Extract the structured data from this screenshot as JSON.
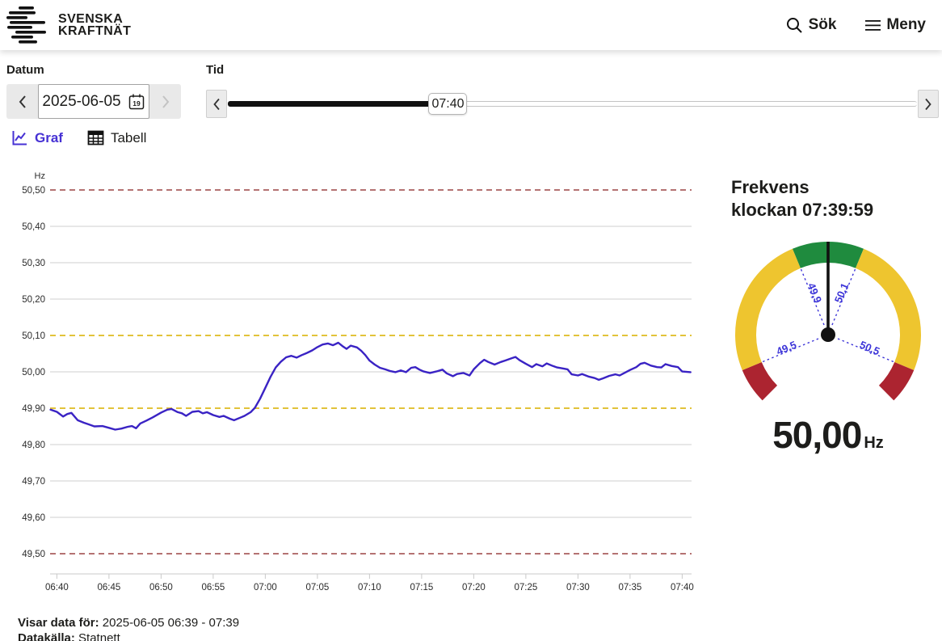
{
  "header": {
    "logo_line1": "SVENSKA",
    "logo_line2": "KRAFTNÄT",
    "search_label": "Sök",
    "menu_label": "Meny"
  },
  "controls": {
    "date_label": "Datum",
    "date_value": "2025-06-05",
    "calendar_icon_day": "19",
    "time_label": "Tid",
    "time_value": "07:40",
    "slider_range": [
      "00:00",
      "24:00"
    ]
  },
  "tabs": {
    "graf": "Graf",
    "tabell": "Tabell"
  },
  "colors": {
    "accent_purple": "#4631d4",
    "line_blue": "#3a23c4",
    "threshold_red": "#9b4343",
    "threshold_yellow": "#e2c33a",
    "gauge_green": "#1f8b3e",
    "gauge_yellow": "#eec52f",
    "gauge_red": "#ac2430",
    "gauge_tick_blue": "#3d35d8"
  },
  "icons": [
    "svenska-kraftnat-logo-mark",
    "search-icon",
    "menu-icon",
    "chevron-left-icon",
    "chevron-right-icon",
    "calendar-icon",
    "line-chart-icon",
    "table-icon"
  ],
  "chart_data": {
    "type": "line",
    "title": "",
    "xlabel": "",
    "ylabel": "Hz",
    "grid": true,
    "legend": false,
    "x_unit": "minutes since 06:00",
    "xlim_minutes": [
      39.35,
      100.9
    ],
    "ylim": [
      49.5,
      50.5
    ],
    "x_ticks": [
      {
        "m": 40,
        "label": "06:40"
      },
      {
        "m": 45,
        "label": "06:45"
      },
      {
        "m": 50,
        "label": "06:50"
      },
      {
        "m": 55,
        "label": "06:55"
      },
      {
        "m": 60,
        "label": "07:00"
      },
      {
        "m": 65,
        "label": "07:05"
      },
      {
        "m": 70,
        "label": "07:10"
      },
      {
        "m": 75,
        "label": "07:15"
      },
      {
        "m": 80,
        "label": "07:20"
      },
      {
        "m": 85,
        "label": "07:25"
      },
      {
        "m": 90,
        "label": "07:30"
      },
      {
        "m": 95,
        "label": "07:35"
      },
      {
        "m": 100,
        "label": "07:40"
      }
    ],
    "y_ticks": [
      {
        "v": 50.5,
        "label": "50,50",
        "kind": "red"
      },
      {
        "v": 50.4,
        "label": "50,40",
        "kind": "gray"
      },
      {
        "v": 50.3,
        "label": "50,30",
        "kind": "gray"
      },
      {
        "v": 50.2,
        "label": "50,20",
        "kind": "gray"
      },
      {
        "v": 50.1,
        "label": "50,10",
        "kind": "yellow"
      },
      {
        "v": 50.0,
        "label": "50,00",
        "kind": "gray"
      },
      {
        "v": 49.9,
        "label": "49,90",
        "kind": "yellow"
      },
      {
        "v": 49.8,
        "label": "49,80",
        "kind": "gray"
      },
      {
        "v": 49.7,
        "label": "49,70",
        "kind": "gray"
      },
      {
        "v": 49.6,
        "label": "49,60",
        "kind": "gray"
      },
      {
        "v": 49.5,
        "label": "49,50",
        "kind": "red"
      }
    ],
    "thresholds": [
      {
        "value": 50.5,
        "color": "#9b4343",
        "style": "dashed",
        "meaning": "upper limit"
      },
      {
        "value": 50.1,
        "color": "#e2c33a",
        "style": "dashed",
        "meaning": "upper normal band"
      },
      {
        "value": 49.9,
        "color": "#e2c33a",
        "style": "dashed",
        "meaning": "lower normal band"
      },
      {
        "value": 49.5,
        "color": "#9b4343",
        "style": "dashed",
        "meaning": "lower limit"
      }
    ],
    "series": [
      {
        "name": "Frekvens",
        "color": "#3a23c4",
        "points": [
          [
            39.4,
            49.896
          ],
          [
            40,
            49.89
          ],
          [
            40.6,
            49.877
          ],
          [
            41,
            49.884
          ],
          [
            41.4,
            49.887
          ],
          [
            42,
            49.867
          ],
          [
            42.6,
            49.86
          ],
          [
            43,
            49.856
          ],
          [
            43.6,
            49.85
          ],
          [
            44.4,
            49.851
          ],
          [
            45,
            49.846
          ],
          [
            45.6,
            49.841
          ],
          [
            46.2,
            49.844
          ],
          [
            46.8,
            49.849
          ],
          [
            47.2,
            49.851
          ],
          [
            47.6,
            49.845
          ],
          [
            48,
            49.858
          ],
          [
            48.6,
            49.866
          ],
          [
            49.2,
            49.875
          ],
          [
            50,
            49.888
          ],
          [
            50.6,
            49.896
          ],
          [
            51,
            49.898
          ],
          [
            51.6,
            49.889
          ],
          [
            52,
            49.886
          ],
          [
            52.4,
            49.879
          ],
          [
            53,
            49.89
          ],
          [
            53.6,
            49.892
          ],
          [
            54,
            49.886
          ],
          [
            54.4,
            49.889
          ],
          [
            55,
            49.881
          ],
          [
            55.6,
            49.876
          ],
          [
            56,
            49.879
          ],
          [
            56.6,
            49.871
          ],
          [
            57,
            49.867
          ],
          [
            57.6,
            49.874
          ],
          [
            58,
            49.879
          ],
          [
            58.6,
            49.889
          ],
          [
            59,
            49.901
          ],
          [
            59.5,
            49.926
          ],
          [
            60,
            49.956
          ],
          [
            60.5,
            49.986
          ],
          [
            61,
            50.012
          ],
          [
            61.5,
            50.028
          ],
          [
            62,
            50.04
          ],
          [
            62.5,
            50.044
          ],
          [
            63,
            50.039
          ],
          [
            63.5,
            50.046
          ],
          [
            64,
            50.052
          ],
          [
            64.5,
            50.059
          ],
          [
            65,
            50.068
          ],
          [
            65.5,
            50.075
          ],
          [
            66,
            50.078
          ],
          [
            66.5,
            50.073
          ],
          [
            67,
            50.08
          ],
          [
            67.4,
            50.071
          ],
          [
            67.8,
            50.063
          ],
          [
            68.2,
            50.072
          ],
          [
            68.8,
            50.067
          ],
          [
            69.2,
            50.058
          ],
          [
            69.6,
            50.046
          ],
          [
            70,
            50.031
          ],
          [
            70.5,
            50.02
          ],
          [
            71,
            50.011
          ],
          [
            71.5,
            50.007
          ],
          [
            72,
            50.002
          ],
          [
            72.5,
            49.999
          ],
          [
            73,
            50.004
          ],
          [
            73.5,
            49.999
          ],
          [
            74,
            50.011
          ],
          [
            74.4,
            50.013
          ],
          [
            74.8,
            50.006
          ],
          [
            75.2,
            50.001
          ],
          [
            75.8,
            49.997
          ],
          [
            76.4,
            50.001
          ],
          [
            77,
            50.006
          ],
          [
            77.4,
            49.996
          ],
          [
            78,
            49.988
          ],
          [
            78.4,
            49.994
          ],
          [
            79,
            49.997
          ],
          [
            79.6,
            49.99
          ],
          [
            80,
            50.007
          ],
          [
            80.6,
            50.024
          ],
          [
            81,
            50.033
          ],
          [
            81.4,
            50.027
          ],
          [
            82,
            50.02
          ],
          [
            82.6,
            50.027
          ],
          [
            83,
            50.031
          ],
          [
            83.6,
            50.037
          ],
          [
            84,
            50.041
          ],
          [
            84.4,
            50.032
          ],
          [
            85,
            50.022
          ],
          [
            85.6,
            50.013
          ],
          [
            86,
            50.021
          ],
          [
            86.6,
            50.015
          ],
          [
            87,
            50.023
          ],
          [
            87.6,
            50.016
          ],
          [
            88,
            50.012
          ],
          [
            88.6,
            50.009
          ],
          [
            89,
            50.007
          ],
          [
            89.4,
            49.993
          ],
          [
            90,
            49.99
          ],
          [
            90.4,
            49.994
          ],
          [
            91,
            49.987
          ],
          [
            91.6,
            49.983
          ],
          [
            92,
            49.978
          ],
          [
            92.4,
            49.982
          ],
          [
            93,
            49.989
          ],
          [
            93.6,
            49.993
          ],
          [
            94,
            49.99
          ],
          [
            94.6,
            49.999
          ],
          [
            95,
            50.005
          ],
          [
            95.6,
            50.013
          ],
          [
            96,
            50.022
          ],
          [
            96.4,
            50.025
          ],
          [
            97,
            50.017
          ],
          [
            97.6,
            50.013
          ],
          [
            98,
            50.012
          ],
          [
            98.4,
            50.021
          ],
          [
            99,
            50.016
          ],
          [
            99.6,
            50.013
          ],
          [
            100,
            50.001
          ],
          [
            100.8,
            49.999
          ]
        ]
      }
    ]
  },
  "gauge": {
    "title_line1": "Frekvens",
    "title_line2": "klockan 07:39:59",
    "value": 50.0,
    "value_display": "50,00",
    "unit": "Hz",
    "scale_min": 49.4,
    "scale_max": 50.6,
    "segments": [
      {
        "from": 49.4,
        "to": 49.5,
        "color": "#ac2430"
      },
      {
        "from": 49.5,
        "to": 49.9,
        "color": "#eec52f"
      },
      {
        "from": 49.9,
        "to": 50.1,
        "color": "#1f8b3e"
      },
      {
        "from": 50.1,
        "to": 50.5,
        "color": "#eec52f"
      },
      {
        "from": 50.5,
        "to": 50.6,
        "color": "#ac2430"
      }
    ],
    "ticks": [
      {
        "value": 49.5,
        "label": "49,5"
      },
      {
        "value": 49.9,
        "label": "49,9"
      },
      {
        "value": 50.1,
        "label": "50,1"
      },
      {
        "value": 50.5,
        "label": "50,5"
      }
    ],
    "tick_color": "#3d35d8",
    "needle_color": "#111111"
  },
  "footer": {
    "showing_label": "Visar data för:",
    "showing_value": "2025-06-05 06:39 - 07:39",
    "source_label": "Datakälla:",
    "source_value": "Statnett"
  }
}
